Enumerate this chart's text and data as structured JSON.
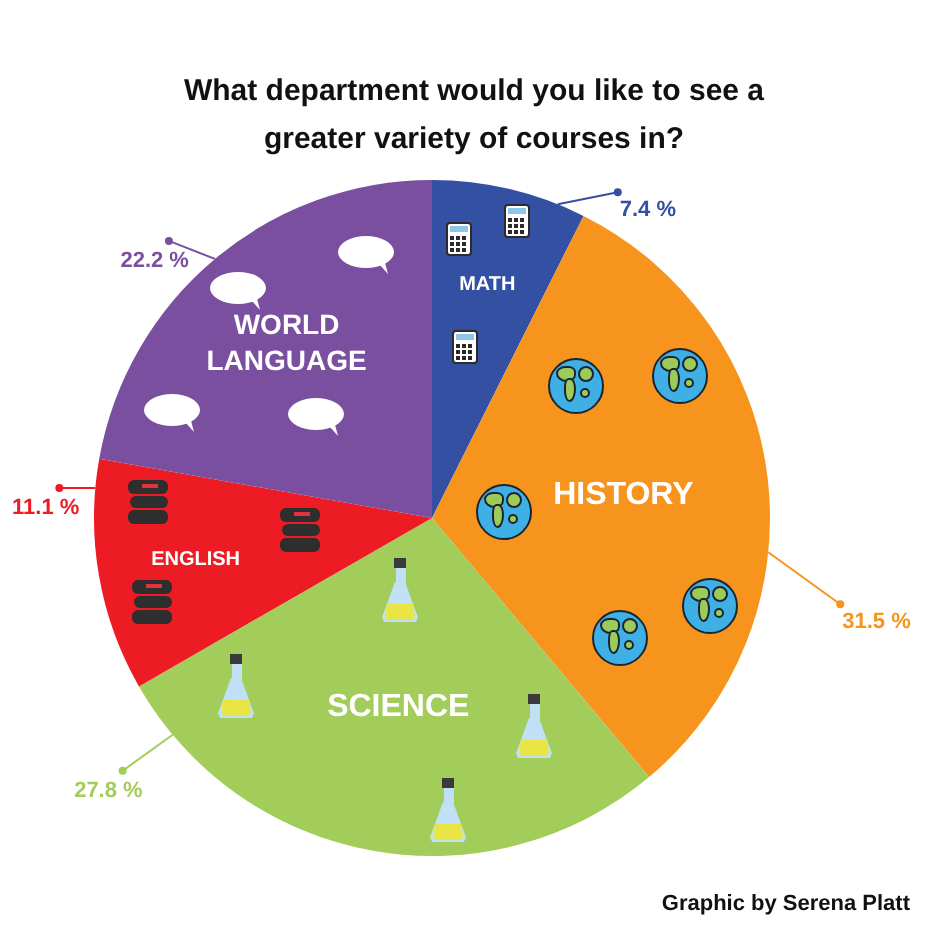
{
  "chart_data": {
    "type": "pie",
    "title": "What department would you like to see a greater variety of courses in?",
    "categories": [
      "MATH",
      "HISTORY",
      "SCIENCE",
      "ENGLISH",
      "WORLD LANGUAGE"
    ],
    "values": [
      7.4,
      31.5,
      27.8,
      11.1,
      22.2
    ],
    "colors": [
      "#3350a2",
      "#f7941d",
      "#a3cd5b",
      "#ed1c24",
      "#7a4f9f"
    ],
    "value_labels": [
      "7.4 %",
      "31.5 %",
      "27.8 %",
      "11.1 %",
      "22.2 %"
    ],
    "annotations": [
      "Graphic by Serena Platt"
    ]
  }
}
